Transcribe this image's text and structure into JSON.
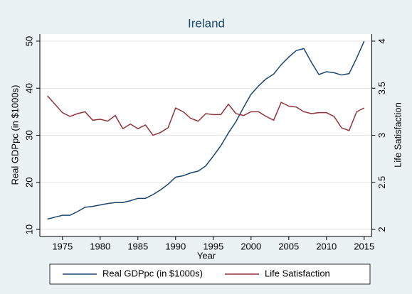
{
  "chart_data": {
    "type": "line",
    "title": "Ireland",
    "x_label": "Year",
    "y_label": "Real GDPpc (in $1000s)",
    "y2_label": "Life Satisfaction",
    "x": [
      1973,
      1974,
      1975,
      1976,
      1977,
      1978,
      1979,
      1980,
      1981,
      1982,
      1983,
      1984,
      1985,
      1986,
      1987,
      1988,
      1989,
      1990,
      1991,
      1992,
      1993,
      1994,
      1995,
      1996,
      1997,
      1998,
      1999,
      2000,
      2001,
      2002,
      2003,
      2004,
      2005,
      2006,
      2007,
      2008,
      2009,
      2010,
      2011,
      2012,
      2013,
      2014,
      2015
    ],
    "series": [
      {
        "name": "Real GDPpc (in $1000s)",
        "color": "#1a476f",
        "values": [
          12.2,
          12.6,
          13.0,
          13.0,
          13.8,
          14.7,
          14.9,
          15.2,
          15.5,
          15.7,
          15.7,
          16.1,
          16.6,
          16.6,
          17.4,
          18.4,
          19.6,
          21.1,
          21.4,
          22.0,
          22.4,
          23.5,
          25.6,
          27.8,
          30.5,
          32.9,
          35.9,
          38.7,
          40.5,
          42.0,
          43.0,
          45.0,
          46.6,
          48.0,
          48.4,
          45.5,
          42.9,
          43.5,
          43.3,
          42.8,
          43.1,
          46.4,
          50.0
        ]
      },
      {
        "name": "Life Satisfaction",
        "color": "#90353b",
        "axis": "y2",
        "values": [
          3.42,
          3.33,
          3.24,
          3.2,
          3.23,
          3.25,
          3.16,
          3.17,
          3.15,
          3.21,
          3.07,
          3.12,
          3.07,
          3.11,
          3.0,
          3.03,
          3.08,
          3.29,
          3.25,
          3.18,
          3.15,
          3.23,
          3.22,
          3.22,
          3.33,
          3.23,
          3.21,
          3.25,
          3.25,
          3.2,
          3.16,
          3.35,
          3.31,
          3.3,
          3.25,
          3.23,
          3.24,
          3.24,
          3.2,
          3.08,
          3.05,
          3.25,
          3.29
        ]
      }
    ],
    "xlim": [
      1972,
      2016
    ],
    "xticks": [
      1975,
      1980,
      1985,
      1990,
      1995,
      2000,
      2005,
      2010,
      2015
    ],
    "ylim": [
      8.5,
      51.5
    ],
    "yticks": [
      10,
      20,
      30,
      40,
      50
    ],
    "y2lim": [
      1.925,
      4.075
    ],
    "y2ticks": [
      2,
      2.5,
      3,
      3.5,
      4
    ],
    "grid": true,
    "legend": "bottom"
  }
}
